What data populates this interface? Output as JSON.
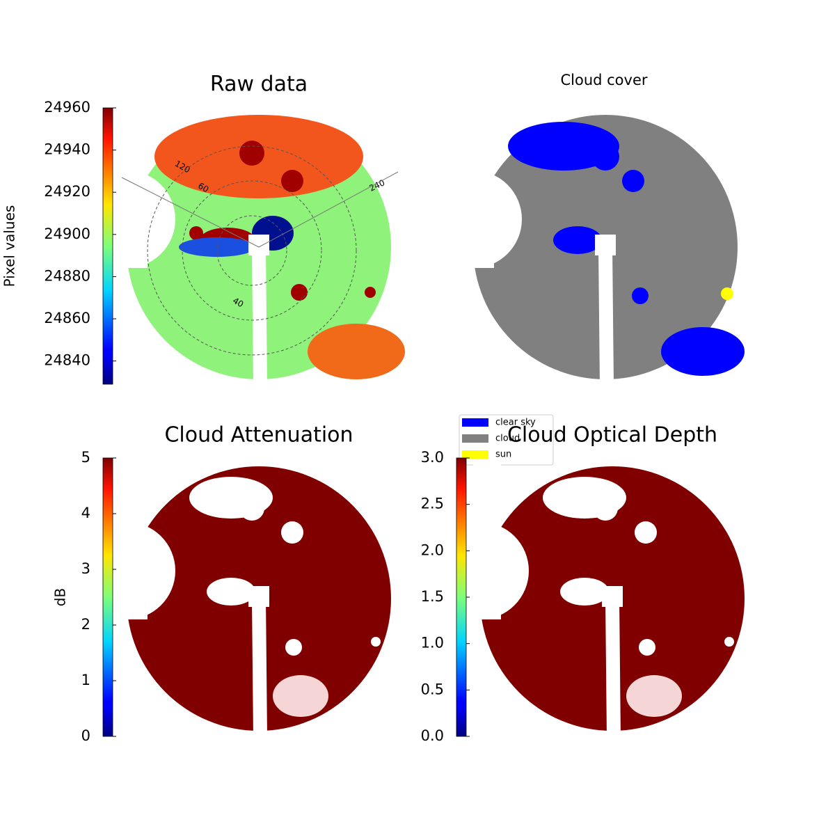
{
  "chart_data": [
    {
      "type": "image",
      "title": "Raw data",
      "colormap": "jet",
      "ylabel": "Pixel values",
      "ylim": [
        24829,
        24960
      ],
      "yticks": [
        24840,
        24860,
        24880,
        24900,
        24920,
        24940,
        24960
      ],
      "annotations": [
        "120",
        "60",
        "240",
        "40"
      ]
    },
    {
      "type": "image",
      "title": "Cloud cover",
      "series": [
        {
          "name": "clear sky",
          "color": "#0000ff"
        },
        {
          "name": "cloud",
          "color": "#808080"
        },
        {
          "name": "sun",
          "color": "#ffff00"
        }
      ]
    },
    {
      "type": "image",
      "title": "Cloud Attenuation",
      "colormap": "jet",
      "ylabel": "dB",
      "ylim": [
        0,
        5
      ],
      "yticks": [
        0,
        1,
        2,
        3,
        4,
        5
      ]
    },
    {
      "type": "image",
      "title": "Cloud Optical Depth",
      "colormap": "jet",
      "ylim": [
        0,
        3
      ],
      "yticks": [
        {
          "value": 0,
          "label": "0.0"
        },
        0.5,
        {
          "value": 1,
          "label": "1.0"
        },
        1.5,
        {
          "value": 2,
          "label": "2.0"
        },
        2.5,
        {
          "value": 3,
          "label": "3.0"
        }
      ]
    }
  ]
}
